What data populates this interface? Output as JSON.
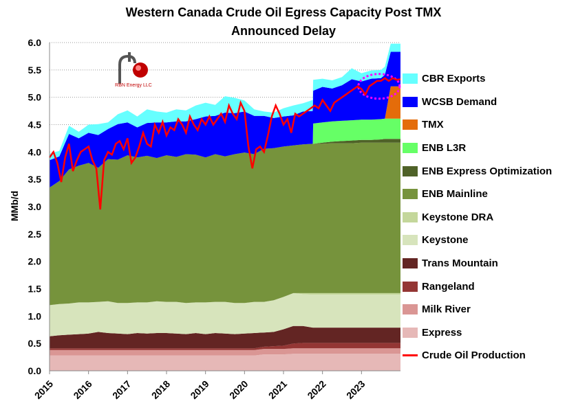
{
  "chart_data": {
    "type": "area",
    "title": "Western Canada Crude Oil Egress Capacity Post TMX",
    "subtitle": "Announced Delay",
    "ylabel": "MMb/d",
    "xlabel": "",
    "ylim": [
      0,
      6.0
    ],
    "xlim": [
      2015,
      2024.0
    ],
    "yticks": [
      "0.0",
      "0.5",
      "1.0",
      "1.5",
      "2.0",
      "2.5",
      "3.0",
      "3.5",
      "4.0",
      "4.5",
      "5.0",
      "5.5",
      "6.0"
    ],
    "xticks": [
      "2015",
      "2016",
      "2017",
      "2018",
      "2019",
      "2020",
      "2021",
      "2022",
      "2023"
    ],
    "grid": "horizontal dotted",
    "legend_position": "right",
    "x": [
      2015.0,
      2015.25,
      2015.5,
      2015.75,
      2016.0,
      2016.25,
      2016.5,
      2016.75,
      2017.0,
      2017.25,
      2017.5,
      2017.75,
      2018.0,
      2018.25,
      2018.5,
      2018.75,
      2019.0,
      2019.25,
      2019.5,
      2019.75,
      2020.0,
      2020.25,
      2020.5,
      2020.75,
      2021.0,
      2021.25,
      2021.5,
      2021.75,
      2021.76,
      2022.0,
      2022.25,
      2022.5,
      2022.75,
      2023.0,
      2023.25,
      2023.5,
      2023.6,
      2023.75,
      2024.0
    ],
    "series": [
      {
        "name": "Express",
        "color": "#e6b8b7",
        "values": [
          0.28,
          0.28,
          0.28,
          0.28,
          0.28,
          0.28,
          0.28,
          0.28,
          0.28,
          0.28,
          0.28,
          0.28,
          0.28,
          0.28,
          0.28,
          0.28,
          0.28,
          0.28,
          0.28,
          0.28,
          0.28,
          0.28,
          0.3,
          0.3,
          0.3,
          0.31,
          0.31,
          0.31,
          0.31,
          0.31,
          0.31,
          0.31,
          0.31,
          0.31,
          0.31,
          0.31,
          0.31,
          0.31,
          0.31
        ]
      },
      {
        "name": "Milk River",
        "color": "#da9694",
        "values": [
          0.1,
          0.1,
          0.1,
          0.1,
          0.1,
          0.1,
          0.1,
          0.1,
          0.1,
          0.1,
          0.1,
          0.1,
          0.1,
          0.1,
          0.1,
          0.1,
          0.1,
          0.1,
          0.1,
          0.1,
          0.1,
          0.1,
          0.1,
          0.1,
          0.1,
          0.1,
          0.1,
          0.1,
          0.1,
          0.1,
          0.1,
          0.1,
          0.1,
          0.1,
          0.1,
          0.1,
          0.1,
          0.1,
          0.1
        ]
      },
      {
        "name": "Rangeland",
        "color": "#943634",
        "values": [
          0.03,
          0.03,
          0.03,
          0.03,
          0.03,
          0.03,
          0.03,
          0.03,
          0.03,
          0.03,
          0.03,
          0.03,
          0.03,
          0.03,
          0.03,
          0.03,
          0.03,
          0.03,
          0.03,
          0.03,
          0.03,
          0.03,
          0.04,
          0.05,
          0.06,
          0.09,
          0.1,
          0.1,
          0.1,
          0.1,
          0.1,
          0.1,
          0.1,
          0.1,
          0.1,
          0.1,
          0.1,
          0.1,
          0.1
        ]
      },
      {
        "name": "Trans Mountain",
        "color": "#632523",
        "values": [
          0.22,
          0.24,
          0.25,
          0.26,
          0.27,
          0.3,
          0.28,
          0.27,
          0.26,
          0.28,
          0.27,
          0.28,
          0.28,
          0.27,
          0.26,
          0.28,
          0.26,
          0.28,
          0.27,
          0.26,
          0.27,
          0.28,
          0.26,
          0.26,
          0.3,
          0.32,
          0.31,
          0.28,
          0.28,
          0.28,
          0.28,
          0.28,
          0.28,
          0.28,
          0.28,
          0.28,
          0.28,
          0.28,
          0.28
        ]
      },
      {
        "name": "Keystone",
        "color": "#d7e4bc",
        "values": [
          0.57,
          0.57,
          0.57,
          0.58,
          0.57,
          0.55,
          0.58,
          0.56,
          0.57,
          0.56,
          0.57,
          0.58,
          0.57,
          0.58,
          0.57,
          0.56,
          0.58,
          0.57,
          0.58,
          0.57,
          0.56,
          0.57,
          0.56,
          0.58,
          0.59,
          0.6,
          0.58,
          0.6,
          0.6,
          0.6,
          0.6,
          0.6,
          0.6,
          0.6,
          0.6,
          0.6,
          0.6,
          0.6,
          0.6
        ]
      },
      {
        "name": "Keystone DRA",
        "color": "#c4d79b",
        "values": [
          0,
          0,
          0,
          0,
          0,
          0,
          0,
          0,
          0,
          0,
          0,
          0,
          0,
          0,
          0,
          0,
          0,
          0,
          0,
          0,
          0,
          0,
          0,
          0,
          0,
          0,
          0.02,
          0.03,
          0.03,
          0.03,
          0.03,
          0.03,
          0.03,
          0.03,
          0.03,
          0.03,
          0.03,
          0.03,
          0.03
        ]
      },
      {
        "name": "ENB Mainline",
        "color": "#76933c",
        "values": [
          2.15,
          2.25,
          2.45,
          2.5,
          2.55,
          2.45,
          2.6,
          2.62,
          2.7,
          2.65,
          2.68,
          2.62,
          2.68,
          2.65,
          2.72,
          2.7,
          2.65,
          2.7,
          2.66,
          2.72,
          2.75,
          2.7,
          2.8,
          2.78,
          2.75,
          2.7,
          2.72,
          2.73,
          2.73,
          2.73,
          2.74,
          2.74,
          2.74,
          2.75,
          2.75,
          2.75,
          2.75,
          2.75,
          2.75
        ]
      },
      {
        "name": "ENB Express Optimization",
        "color": "#4f6228",
        "values": [
          0,
          0,
          0,
          0,
          0,
          0,
          0,
          0,
          0,
          0,
          0,
          0,
          0,
          0,
          0,
          0,
          0,
          0,
          0,
          0,
          0,
          0,
          0,
          0,
          0,
          0,
          0,
          0,
          0,
          0.02,
          0.03,
          0.04,
          0.05,
          0.05,
          0.05,
          0.06,
          0.07,
          0.07,
          0.07
        ]
      },
      {
        "name": "ENB L3R",
        "color": "#66ff66",
        "values": [
          0,
          0,
          0,
          0,
          0,
          0,
          0,
          0,
          0,
          0,
          0,
          0,
          0,
          0,
          0,
          0,
          0,
          0,
          0,
          0,
          0,
          0,
          0,
          0,
          0,
          0,
          0,
          0,
          0.37,
          0.37,
          0.37,
          0.37,
          0.37,
          0.37,
          0.37,
          0.37,
          0.37,
          0.37,
          0.37
        ]
      },
      {
        "name": "TMX",
        "color": "#e46c0a",
        "values": [
          0,
          0,
          0,
          0,
          0,
          0,
          0,
          0,
          0,
          0,
          0,
          0,
          0,
          0,
          0,
          0,
          0,
          0,
          0,
          0,
          0,
          0,
          0,
          0,
          0,
          0,
          0,
          0,
          0,
          0,
          0,
          0,
          0,
          0,
          0,
          0,
          0,
          0.59,
          0.59
        ]
      },
      {
        "name": "WCSB Demand",
        "color": "#0000ff",
        "values": [
          0.5,
          0.45,
          0.65,
          0.5,
          0.55,
          0.6,
          0.55,
          0.65,
          0.6,
          0.55,
          0.6,
          0.65,
          0.6,
          0.65,
          0.6,
          0.65,
          0.75,
          0.7,
          0.8,
          0.75,
          0.75,
          0.7,
          0.6,
          0.55,
          0.55,
          0.55,
          0.6,
          0.6,
          0.6,
          0.65,
          0.6,
          0.65,
          0.75,
          0.7,
          0.75,
          0.75,
          0.8,
          0.63,
          0.63
        ]
      },
      {
        "name": "CBR Exports",
        "color": "#66ffff",
        "values": [
          0.12,
          0.1,
          0.15,
          0.12,
          0.15,
          0.2,
          0.12,
          0.18,
          0.22,
          0.2,
          0.25,
          0.2,
          0.18,
          0.22,
          0.2,
          0.25,
          0.25,
          0.2,
          0.3,
          0.28,
          0.2,
          0.12,
          0.08,
          0.1,
          0.15,
          0.18,
          0.15,
          0.2,
          0.2,
          0.15,
          0.15,
          0.15,
          0.2,
          0.15,
          0.15,
          0.15,
          0.15,
          0.15,
          0.15
        ]
      }
    ],
    "line": {
      "name": "Crude Oil Production",
      "color": "#ff0000",
      "x": [
        2015.0,
        2015.1,
        2015.2,
        2015.3,
        2015.4,
        2015.5,
        2015.6,
        2015.7,
        2015.8,
        2015.9,
        2016.0,
        2016.1,
        2016.2,
        2016.3,
        2016.4,
        2016.5,
        2016.6,
        2016.7,
        2016.8,
        2016.9,
        2017.0,
        2017.1,
        2017.2,
        2017.3,
        2017.4,
        2017.5,
        2017.6,
        2017.7,
        2017.8,
        2017.9,
        2018.0,
        2018.1,
        2018.2,
        2018.3,
        2018.4,
        2018.5,
        2018.6,
        2018.7,
        2018.8,
        2018.9,
        2019.0,
        2019.1,
        2019.2,
        2019.3,
        2019.4,
        2019.5,
        2019.6,
        2019.7,
        2019.8,
        2019.9,
        2020.0,
        2020.1,
        2020.2,
        2020.3,
        2020.4,
        2020.5,
        2020.6,
        2020.7,
        2020.8,
        2020.9,
        2021.0,
        2021.1,
        2021.2,
        2021.3,
        2021.4,
        2021.5,
        2021.6,
        2021.7,
        2021.8,
        2021.9,
        2022.0,
        2022.1,
        2022.2,
        2022.3,
        2022.4,
        2022.5,
        2022.6,
        2022.7,
        2022.8,
        2022.9,
        2023.0,
        2023.1,
        2023.2,
        2023.3,
        2023.4,
        2023.5,
        2023.6,
        2023.7,
        2023.8,
        2023.9,
        2024.0
      ],
      "values": [
        3.9,
        4.0,
        3.8,
        3.45,
        3.9,
        4.15,
        3.65,
        3.85,
        4.0,
        4.05,
        4.1,
        3.85,
        3.7,
        2.95,
        3.85,
        4.0,
        3.95,
        4.15,
        4.2,
        4.05,
        4.25,
        3.8,
        3.9,
        4.1,
        4.35,
        4.15,
        4.1,
        4.5,
        4.35,
        4.55,
        4.3,
        4.45,
        4.4,
        4.6,
        4.5,
        4.35,
        4.65,
        4.5,
        4.4,
        4.6,
        4.5,
        4.65,
        4.5,
        4.6,
        4.7,
        4.55,
        4.85,
        4.7,
        4.6,
        4.9,
        4.75,
        4.1,
        3.7,
        4.05,
        4.1,
        4.0,
        4.3,
        4.65,
        4.85,
        4.7,
        4.5,
        4.6,
        4.35,
        4.7,
        4.65,
        4.7,
        4.75,
        4.8,
        4.85,
        4.8,
        4.95,
        4.85,
        4.75,
        4.9,
        4.95,
        5.0,
        5.05,
        5.1,
        5.15,
        5.2,
        5.15,
        5.05,
        5.2,
        5.25,
        5.3,
        5.3,
        5.35,
        5.3,
        5.35,
        5.32,
        5.33
      ]
    },
    "annotation": {
      "type": "dotted-ellipse",
      "color": "#ff00ff",
      "x": 2023.45,
      "y": 5.2
    }
  },
  "logo": {
    "text": "RBN Energy LLC"
  }
}
